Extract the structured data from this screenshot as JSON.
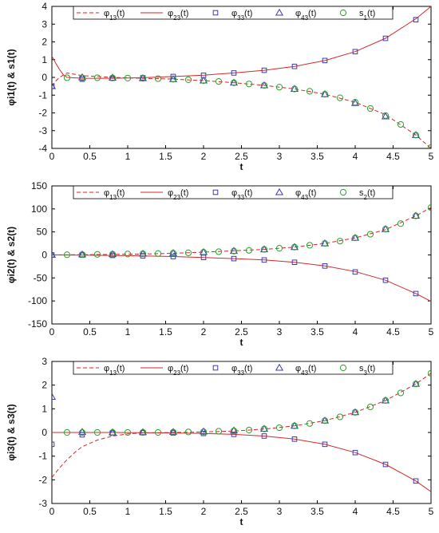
{
  "colors": {
    "phi13": "#d62728",
    "phi23": "#d62728",
    "phi33": "#3b3bb3",
    "phi43": "#3b3bb3",
    "s": "#2ca02c",
    "axis": "#000000",
    "grid": "#d9d9d9"
  },
  "chart_data": [
    {
      "type": "line",
      "xlabel": "t",
      "ylabel": "φi1(t) & s1(t)",
      "xlim": [
        0,
        5
      ],
      "ylim": [
        -4,
        4
      ],
      "xticks": [
        "0",
        "0.5",
        "1",
        "1.5",
        "2",
        "2.5",
        "3",
        "3.5",
        "4",
        "4.5",
        "5"
      ],
      "yticks": [
        "-4",
        "-3",
        "-2",
        "-1",
        "0",
        "1",
        "2",
        "3",
        "4"
      ],
      "grid": true,
      "legend_position": "top",
      "series": [
        {
          "name": "φ13(t)",
          "style": "dashed-line",
          "x": [
            0,
            0.05,
            0.1,
            0.2,
            0.4,
            0.8,
            1.2,
            1.6,
            2.0,
            2.4,
            2.8,
            3.2,
            3.6,
            4.0,
            4.4,
            4.8,
            5.0
          ],
          "y": [
            -0.5,
            -0.2,
            0.0,
            0.25,
            0.1,
            0.0,
            -0.05,
            -0.1,
            -0.18,
            -0.3,
            -0.45,
            -0.65,
            -0.95,
            -1.4,
            -2.1,
            -3.25,
            -4.0
          ]
        },
        {
          "name": "φ23(t)",
          "style": "solid-line",
          "x": [
            0,
            0.05,
            0.1,
            0.15,
            0.2,
            0.4,
            0.8,
            1.2,
            1.6,
            2.0,
            2.4,
            2.8,
            3.2,
            3.6,
            4.0,
            4.4,
            4.8,
            5.0
          ],
          "y": [
            1.2,
            0.8,
            0.45,
            0.15,
            0.0,
            -0.05,
            -0.05,
            -0.02,
            0.05,
            0.12,
            0.25,
            0.4,
            0.62,
            0.95,
            1.45,
            2.2,
            3.3,
            4.0
          ]
        },
        {
          "name": "φ33(t)",
          "style": "square",
          "x": [
            0,
            0.4,
            0.8,
            1.2,
            1.6,
            2.0,
            2.4,
            2.8,
            3.2,
            3.6,
            4.0,
            4.4,
            4.8
          ],
          "y": [
            -0.5,
            -0.1,
            -0.05,
            -0.02,
            0.05,
            0.12,
            0.25,
            0.4,
            0.62,
            0.95,
            1.45,
            2.2,
            3.25
          ]
        },
        {
          "name": "φ43(t)",
          "style": "triangle",
          "x": [
            0,
            0.4,
            0.8,
            1.2,
            1.6,
            2.0,
            2.4,
            2.8,
            3.2,
            3.6,
            4.0,
            4.4,
            4.8
          ],
          "y": [
            -0.5,
            0.0,
            -0.02,
            -0.05,
            -0.1,
            -0.18,
            -0.3,
            -0.45,
            -0.65,
            -0.95,
            -1.45,
            -2.2,
            -3.25
          ]
        },
        {
          "name": "s1(t)",
          "style": "circle",
          "x": [
            0.2,
            0.4,
            0.6,
            0.8,
            1.0,
            1.2,
            1.4,
            1.6,
            1.8,
            2.0,
            2.2,
            2.4,
            2.6,
            2.8,
            3.0,
            3.2,
            3.4,
            3.6,
            3.8,
            4.0,
            4.2,
            4.4,
            4.6,
            4.8,
            5.0
          ],
          "y": [
            -0.02,
            -0.02,
            -0.02,
            -0.03,
            -0.04,
            -0.05,
            -0.07,
            -0.1,
            -0.13,
            -0.18,
            -0.23,
            -0.3,
            -0.37,
            -0.45,
            -0.55,
            -0.65,
            -0.78,
            -0.95,
            -1.15,
            -1.4,
            -1.75,
            -2.15,
            -2.65,
            -3.25,
            -3.95
          ]
        }
      ]
    },
    {
      "type": "line",
      "xlabel": "t",
      "ylabel": "φi2(t) & s2(t)",
      "xlim": [
        0,
        5
      ],
      "ylim": [
        -150,
        150
      ],
      "xticks": [
        "0",
        "0.5",
        "1",
        "1.5",
        "2",
        "2.5",
        "3",
        "3.5",
        "4",
        "4.5",
        "5"
      ],
      "yticks": [
        "-150",
        "-100",
        "-50",
        "0",
        "50",
        "100",
        "150"
      ],
      "grid": true,
      "legend_position": "top",
      "series": [
        {
          "name": "φ13(t)",
          "style": "dashed-line",
          "x": [
            0,
            0.4,
            0.8,
            1.2,
            1.6,
            2.0,
            2.4,
            2.8,
            3.2,
            3.6,
            4.0,
            4.4,
            4.8,
            5.0
          ],
          "y": [
            0,
            0.5,
            1,
            2,
            3.5,
            6,
            9,
            12,
            17,
            25,
            37,
            55,
            85,
            103
          ]
        },
        {
          "name": "φ23(t)",
          "style": "solid-line",
          "x": [
            0,
            0.4,
            0.8,
            1.2,
            1.6,
            2.0,
            2.4,
            2.8,
            3.2,
            3.6,
            4.0,
            4.4,
            4.8,
            5.0
          ],
          "y": [
            0,
            -0.5,
            -1,
            -2,
            -3.5,
            -5.5,
            -8,
            -11,
            -16,
            -24,
            -36,
            -55,
            -84,
            -101
          ]
        },
        {
          "name": "φ33(t)",
          "style": "square",
          "x": [
            0,
            0.4,
            0.8,
            1.2,
            1.6,
            2.0,
            2.4,
            2.8,
            3.2,
            3.6,
            4.0,
            4.4,
            4.8
          ],
          "y": [
            0,
            -0.5,
            -1,
            -2,
            -3.5,
            -5.5,
            -8,
            -11,
            -16,
            -24,
            -37,
            -55,
            -84
          ]
        },
        {
          "name": "φ43(t)",
          "style": "triangle",
          "x": [
            0,
            0.4,
            0.8,
            1.2,
            1.6,
            2.0,
            2.4,
            2.8,
            3.2,
            3.6,
            4.0,
            4.4,
            4.8
          ],
          "y": [
            0,
            1,
            1.5,
            2.5,
            4,
            6,
            8.5,
            12,
            17,
            25,
            37,
            56,
            85
          ]
        },
        {
          "name": "s2(t)",
          "style": "circle",
          "x": [
            0.2,
            0.4,
            0.6,
            0.8,
            1.0,
            1.2,
            1.4,
            1.6,
            1.8,
            2.0,
            2.2,
            2.4,
            2.6,
            2.8,
            3.0,
            3.2,
            3.4,
            3.6,
            3.8,
            4.0,
            4.2,
            4.4,
            4.6,
            4.8,
            5.0
          ],
          "y": [
            0.5,
            0.8,
            1.2,
            1.6,
            2,
            2.5,
            3,
            3.8,
            4.6,
            5.8,
            7,
            8.5,
            10,
            12,
            14.5,
            17,
            21,
            25,
            30,
            37,
            45,
            56,
            68,
            85,
            103
          ]
        }
      ]
    },
    {
      "type": "line",
      "xlabel": "t",
      "ylabel": "φi3(t) & s3(t)",
      "xlim": [
        0,
        5
      ],
      "ylim": [
        -3,
        3
      ],
      "xticks": [
        "0",
        "0.5",
        "1",
        "1.5",
        "2",
        "2.5",
        "3",
        "3.5",
        "4",
        "4.5",
        "5"
      ],
      "yticks": [
        "-3",
        "-2",
        "-1",
        "0",
        "1",
        "2",
        "3"
      ],
      "grid": true,
      "legend_position": "top",
      "series": [
        {
          "name": "φ13(t)",
          "style": "dashed-line",
          "x": [
            0,
            0.1,
            0.2,
            0.3,
            0.4,
            0.6,
            0.8,
            1.0,
            1.2,
            1.6,
            2.0,
            2.4,
            2.8,
            3.2,
            3.6,
            4.0,
            4.4,
            4.8,
            5.0
          ],
          "y": [
            -1.9,
            -1.5,
            -1.15,
            -0.85,
            -0.6,
            -0.32,
            -0.15,
            -0.06,
            -0.02,
            0.0,
            0.02,
            0.06,
            0.14,
            0.28,
            0.5,
            0.85,
            1.35,
            2.05,
            2.5
          ]
        },
        {
          "name": "φ23(t)",
          "style": "solid-line",
          "x": [
            0,
            0.4,
            0.8,
            1.2,
            1.6,
            2.0,
            2.4,
            2.8,
            3.2,
            3.6,
            4.0,
            4.4,
            4.8,
            5.0
          ],
          "y": [
            0,
            0,
            0,
            -0.01,
            -0.02,
            -0.04,
            -0.08,
            -0.15,
            -0.28,
            -0.5,
            -0.85,
            -1.35,
            -2.05,
            -2.5
          ]
        },
        {
          "name": "φ33(t)",
          "style": "square",
          "x": [
            0,
            0.4,
            0.8,
            1.2,
            1.6,
            2.0,
            2.4,
            2.8,
            3.2,
            3.6,
            4.0,
            4.4,
            4.8
          ],
          "y": [
            -0.5,
            -0.1,
            -0.03,
            -0.01,
            -0.02,
            -0.04,
            -0.08,
            -0.15,
            -0.28,
            -0.5,
            -0.85,
            -1.35,
            -2.05
          ]
        },
        {
          "name": "φ43(t)",
          "style": "triangle",
          "x": [
            0,
            0.4,
            0.8,
            1.2,
            1.6,
            2.0,
            2.4,
            2.8,
            3.2,
            3.6,
            4.0,
            4.4,
            4.8
          ],
          "y": [
            1.5,
            0.02,
            0.0,
            0.01,
            0.02,
            0.04,
            0.08,
            0.15,
            0.28,
            0.5,
            0.85,
            1.35,
            2.05
          ]
        },
        {
          "name": "s3(t)",
          "style": "circle",
          "x": [
            0.2,
            0.4,
            0.6,
            0.8,
            1.0,
            1.2,
            1.4,
            1.6,
            1.8,
            2.0,
            2.2,
            2.4,
            2.6,
            2.8,
            3.0,
            3.2,
            3.4,
            3.6,
            3.8,
            4.0,
            4.2,
            4.4,
            4.6,
            4.8,
            5.0
          ],
          "y": [
            0.0,
            0.0,
            0.0,
            0.0,
            0.0,
            0.0,
            0.0,
            0.01,
            0.02,
            0.03,
            0.05,
            0.07,
            0.1,
            0.15,
            0.2,
            0.28,
            0.38,
            0.5,
            0.66,
            0.85,
            1.08,
            1.35,
            1.67,
            2.05,
            2.5
          ]
        }
      ]
    }
  ]
}
